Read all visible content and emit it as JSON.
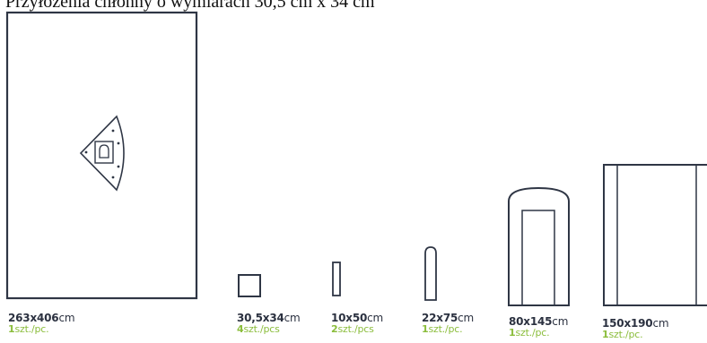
{
  "heading": "Przyłożenia chłonny o wymiarach 30,5 cm x 34 cm",
  "colors": {
    "outline": "#2f3645",
    "size_text": "#2b3140",
    "qty_text": "#8bbd3c"
  },
  "items": [
    {
      "size": "263x406",
      "size_unit": "cm",
      "qty": "1",
      "qty_unit": "szt./pc.",
      "shape": "large-drape-with-triangle-window"
    },
    {
      "size": "30,5x34",
      "size_unit": "cm",
      "qty": "4",
      "qty_unit": "szt./pcs",
      "shape": "square-towel"
    },
    {
      "size": "10x50",
      "size_unit": "cm",
      "qty": "2",
      "qty_unit": "szt./pcs",
      "shape": "narrow-strip"
    },
    {
      "size": "22x75",
      "size_unit": "cm",
      "qty": "1",
      "qty_unit": "szt./pc.",
      "shape": "rounded-cover"
    },
    {
      "size": "80x145",
      "size_unit": "cm",
      "qty": "1",
      "qty_unit": "szt./pc.",
      "shape": "mayo-cover"
    },
    {
      "size": "150x190",
      "size_unit": "cm",
      "qty": "1",
      "qty_unit": "szt./pc.",
      "shape": "table-cover"
    }
  ]
}
